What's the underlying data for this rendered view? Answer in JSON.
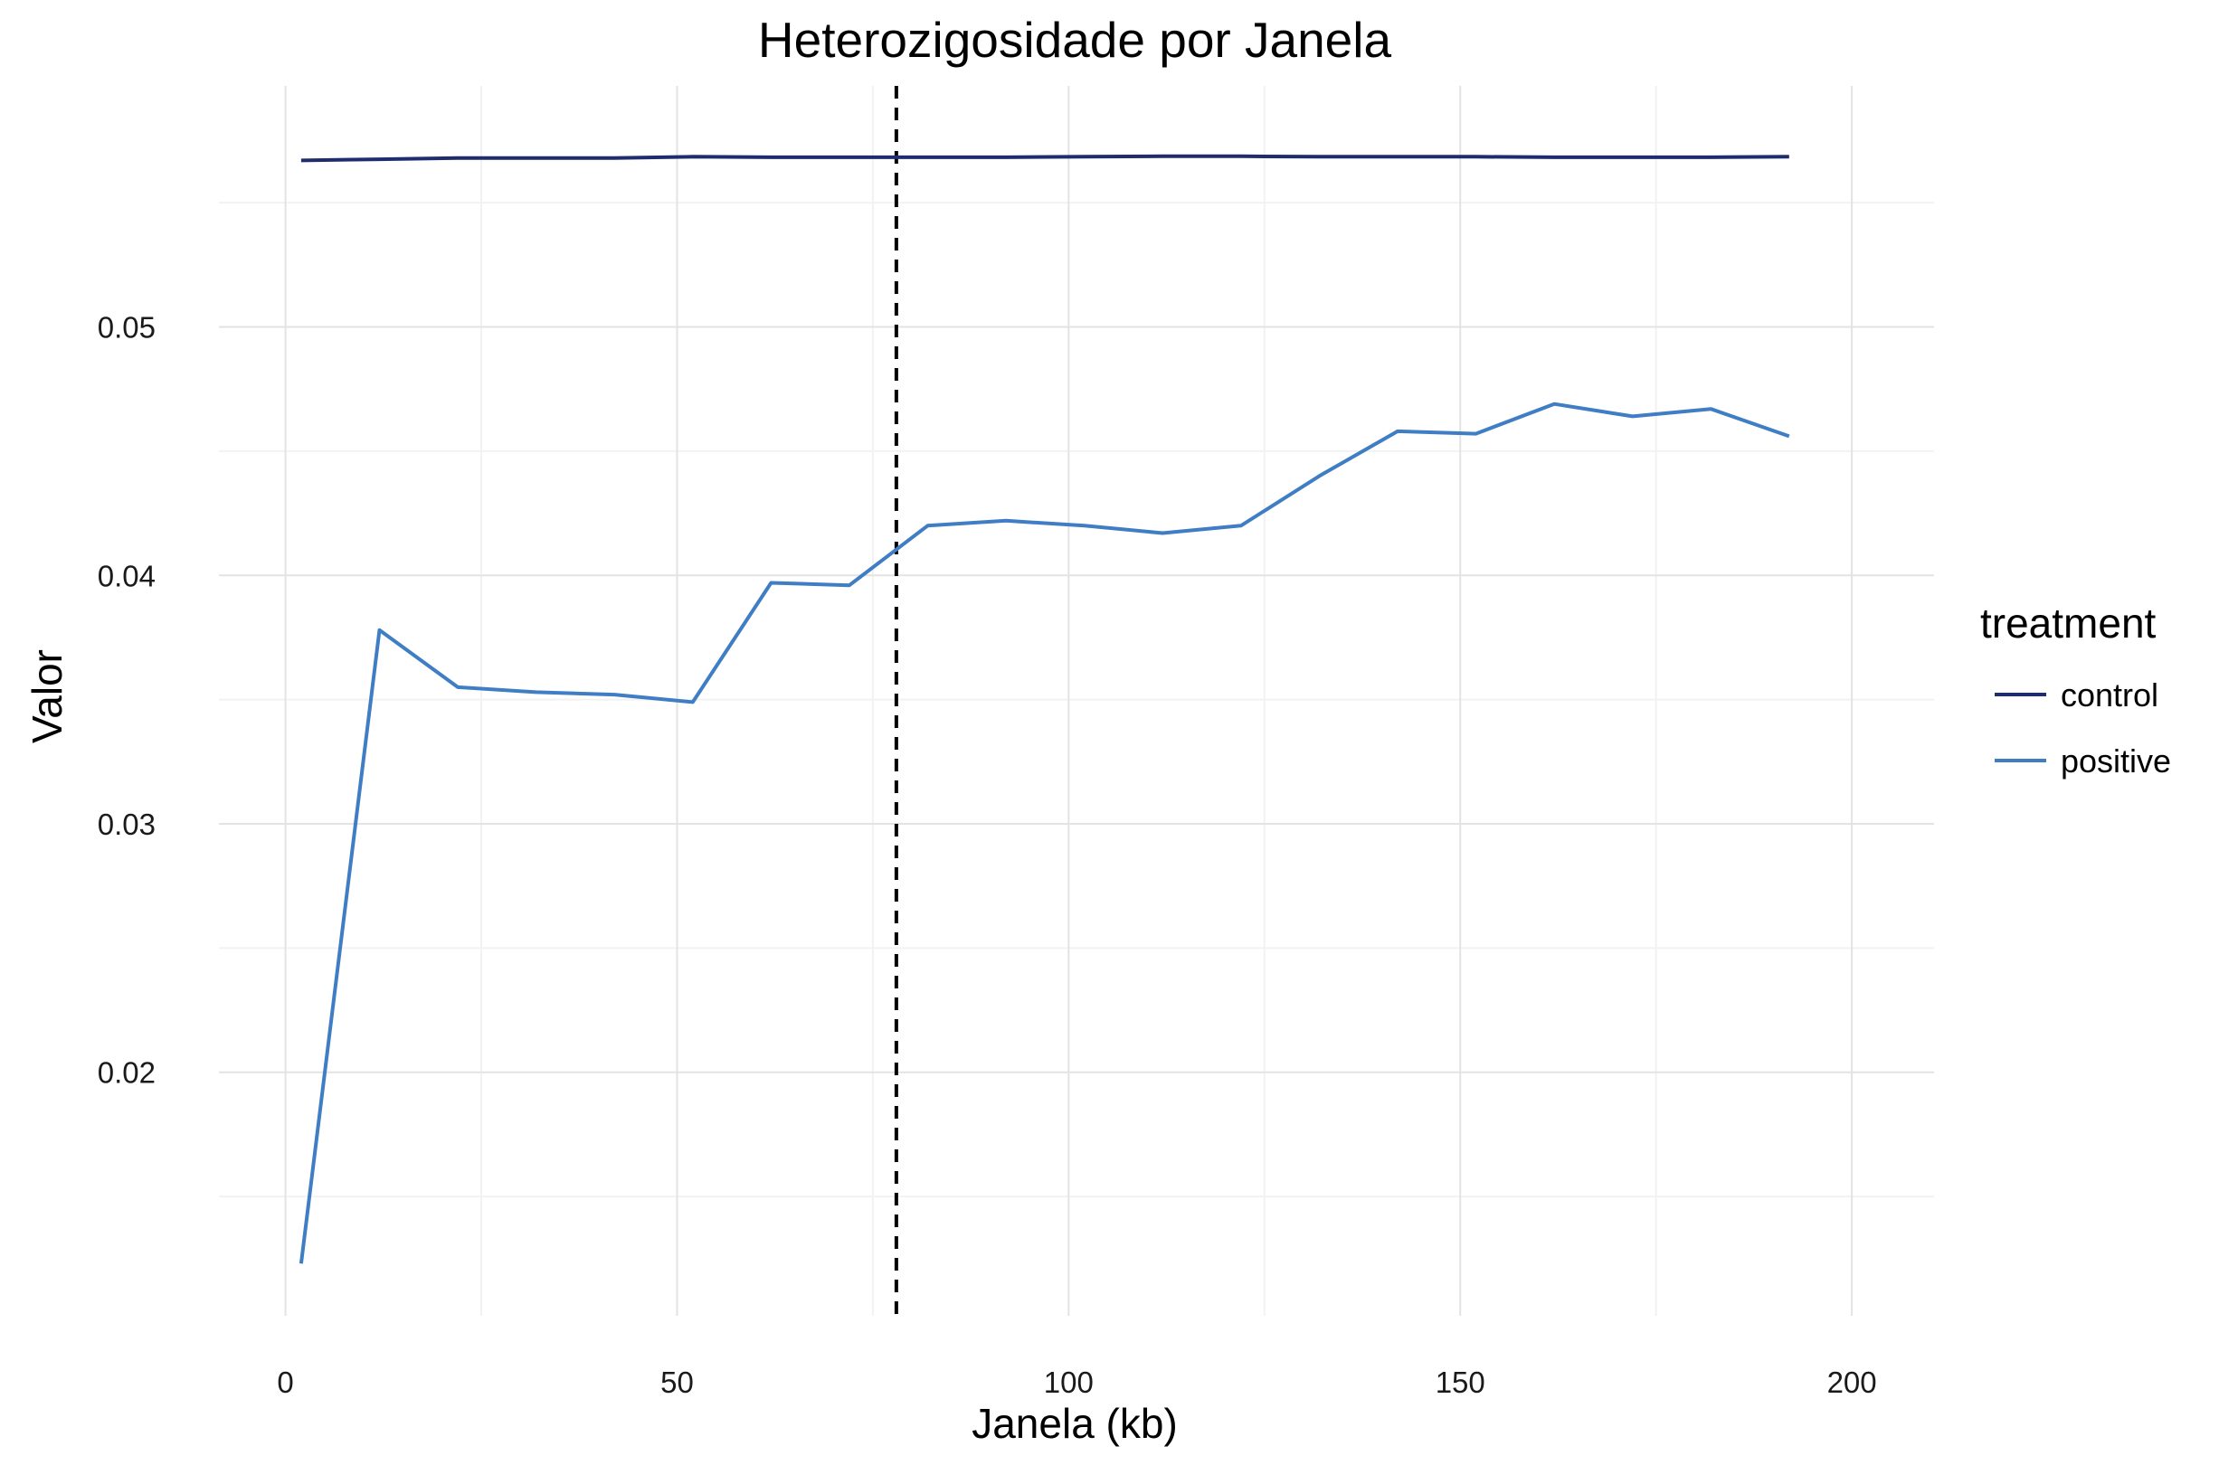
{
  "chart_data": {
    "type": "line",
    "title": "Heterozigosidade por Janela",
    "xlabel": "Janela (kb)",
    "ylabel": "Valor",
    "xlim": [
      -8.5,
      210.5
    ],
    "ylim": [
      0.0102,
      0.0597
    ],
    "x_ticks": [
      0,
      50,
      100,
      150,
      200
    ],
    "x_tick_labels": [
      "0",
      "50",
      "100",
      "150",
      "200"
    ],
    "y_ticks": [
      0.02,
      0.03,
      0.04,
      0.05
    ],
    "y_tick_labels": [
      "0.02",
      "0.03",
      "0.04",
      "0.05"
    ],
    "grid": true,
    "reference_line": {
      "x": 78,
      "style": "dashed",
      "color": "#000000"
    },
    "x": [
      2,
      12,
      22,
      32,
      42,
      52,
      62,
      72,
      82,
      92,
      102,
      112,
      122,
      132,
      142,
      152,
      162,
      172,
      182,
      192
    ],
    "series": [
      {
        "name": "control",
        "color": "#1f2d6e",
        "values": [
          0.0567,
          0.05675,
          0.0568,
          0.0568,
          0.0568,
          0.05685,
          0.05683,
          0.05683,
          0.05683,
          0.05683,
          0.05685,
          0.05687,
          0.05687,
          0.05685,
          0.05685,
          0.05685,
          0.05683,
          0.05683,
          0.05683,
          0.05685
        ]
      },
      {
        "name": "positive",
        "color": "#3f7dc4",
        "values": [
          0.0123,
          0.0378,
          0.0355,
          0.0353,
          0.0352,
          0.0349,
          0.0397,
          0.0396,
          0.042,
          0.0422,
          0.042,
          0.0417,
          0.042,
          0.044,
          0.0458,
          0.0457,
          0.0469,
          0.0464,
          0.0467,
          0.0456
        ]
      }
    ],
    "legend": {
      "title": "treatment",
      "position": "right"
    }
  }
}
